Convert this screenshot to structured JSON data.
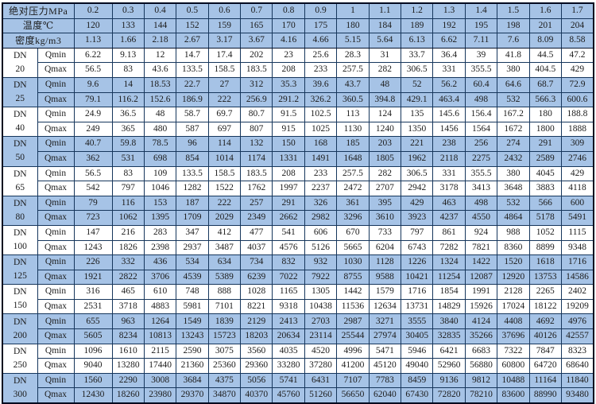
{
  "table": {
    "dn_prefix": "DN",
    "qmin_label": "Qmin",
    "qmax_label": "Qmax",
    "header_rows": [
      {
        "label": "绝对压力MPa",
        "values": [
          "0.2",
          "0.3",
          "0.4",
          "0.5",
          "0.6",
          "0.7",
          "0.8",
          "0.9",
          "1",
          "1.1",
          "1.2",
          "1.3",
          "1.4",
          "1.5",
          "1.6",
          "1.7"
        ]
      },
      {
        "label": "温度℃",
        "values": [
          "120",
          "133",
          "144",
          "152",
          "159",
          "165",
          "170",
          "175",
          "180",
          "184",
          "189",
          "192",
          "195",
          "198",
          "201",
          "204"
        ]
      },
      {
        "label": "密度kg/m3",
        "values": [
          "1.13",
          "1.66",
          "2.18",
          "2.67",
          "3.17",
          "3.67",
          "4.16",
          "4.66",
          "5.15",
          "5.64",
          "6.13",
          "6.62",
          "7.11",
          "7.6",
          "8.09",
          "8.58"
        ]
      }
    ],
    "groups": [
      {
        "dn": "20",
        "qmin": [
          "6.22",
          "9.13",
          "12",
          "14.7",
          "17.4",
          "202",
          "23",
          "25.6",
          "28.3",
          "31",
          "33.7",
          "36.4",
          "39",
          "41.8",
          "44.5",
          "47.2"
        ],
        "qmax": [
          "56.5",
          "83",
          "43.6",
          "133.5",
          "158.5",
          "183.5",
          "208",
          "233",
          "257.5",
          "282",
          "306.5",
          "331",
          "355.5",
          "380",
          "404.5",
          "429"
        ]
      },
      {
        "dn": "25",
        "qmin": [
          "9.6",
          "14",
          "18.53",
          "22.7",
          "27",
          "312",
          "35.3",
          "39.6",
          "43.7",
          "48",
          "52",
          "56.2",
          "60.4",
          "64.6",
          "68.7",
          "72.9"
        ],
        "qmax": [
          "79.1",
          "116.2",
          "152.6",
          "186.9",
          "222",
          "256.9",
          "291.2",
          "326.2",
          "360.5",
          "394.8",
          "429.1",
          "463.4",
          "498",
          "532",
          "566.3",
          "600.6"
        ]
      },
      {
        "dn": "40",
        "qmin": [
          "24.9",
          "36.5",
          "48",
          "58.7",
          "69.7",
          "80.7",
          "91.5",
          "102.5",
          "113",
          "124",
          "135",
          "145.6",
          "156.4",
          "167.2",
          "180",
          "188.8"
        ],
        "qmax": [
          "249",
          "365",
          "480",
          "587",
          "697",
          "807",
          "915",
          "1025",
          "1130",
          "1240",
          "1350",
          "1456",
          "1564",
          "1672",
          "1800",
          "1888"
        ]
      },
      {
        "dn": "50",
        "qmin": [
          "40.7",
          "59.8",
          "78.5",
          "96",
          "114",
          "132",
          "150",
          "168",
          "185",
          "203",
          "221",
          "238",
          "256",
          "274",
          "291",
          "309"
        ],
        "qmax": [
          "362",
          "531",
          "698",
          "854",
          "1014",
          "1174",
          "1331",
          "1491",
          "1648",
          "1805",
          "1962",
          "2118",
          "2275",
          "2432",
          "2589",
          "2746"
        ]
      },
      {
        "dn": "65",
        "qmin": [
          "56.5",
          "83",
          "109",
          "133.5",
          "158.5",
          "183.5",
          "208",
          "233",
          "257.5",
          "282",
          "306.5",
          "331",
          "355.5",
          "380",
          "4045",
          "429"
        ],
        "qmax": [
          "542",
          "797",
          "1046",
          "1282",
          "1522",
          "1762",
          "1997",
          "2237",
          "2472",
          "2707",
          "2942",
          "3178",
          "3413",
          "3648",
          "3883",
          "4118"
        ]
      },
      {
        "dn": "80",
        "qmin": [
          "79",
          "116",
          "153",
          "187",
          "222",
          "257",
          "291",
          "326",
          "361",
          "395",
          "429",
          "463",
          "498",
          "532",
          "566",
          "600"
        ],
        "qmax": [
          "723",
          "1062",
          "1395",
          "1709",
          "2029",
          "2349",
          "2662",
          "2982",
          "3296",
          "3610",
          "3923",
          "4237",
          "4550",
          "4864",
          "5178",
          "5491"
        ]
      },
      {
        "dn": "100",
        "qmin": [
          "147",
          "216",
          "283",
          "347",
          "412",
          "477",
          "541",
          "606",
          "670",
          "733",
          "797",
          "861",
          "924",
          "988",
          "1052",
          "1115"
        ],
        "qmax": [
          "1243",
          "1826",
          "2398",
          "2937",
          "3487",
          "4037",
          "4576",
          "5126",
          "5665",
          "6204",
          "6743",
          "7282",
          "7821",
          "8360",
          "8899",
          "9348"
        ]
      },
      {
        "dn": "125",
        "qmin": [
          "226",
          "332",
          "436",
          "534",
          "634",
          "734",
          "832",
          "932",
          "1030",
          "1128",
          "1226",
          "1324",
          "1422",
          "1520",
          "1618",
          "1716"
        ],
        "qmax": [
          "1921",
          "2822",
          "3706",
          "4539",
          "5389",
          "6239",
          "7022",
          "7922",
          "8755",
          "9588",
          "10421",
          "11254",
          "12087",
          "12920",
          "13753",
          "14586"
        ]
      },
      {
        "dn": "150",
        "qmin": [
          "316",
          "465",
          "610",
          "748",
          "888",
          "1028",
          "1165",
          "1305",
          "1442",
          "1579",
          "1716",
          "1854",
          "1991",
          "2128",
          "2265",
          "2402"
        ],
        "qmax": [
          "2531",
          "3718",
          "4883",
          "5981",
          "7101",
          "8221",
          "9318",
          "10438",
          "11536",
          "12634",
          "13731",
          "14829",
          "15926",
          "17024",
          "18122",
          "19209"
        ]
      },
      {
        "dn": "200",
        "qmin": [
          "655",
          "963",
          "1264",
          "1549",
          "1839",
          "2129",
          "2413",
          "2703",
          "2987",
          "3271",
          "3555",
          "3840",
          "4124",
          "4408",
          "4692",
          "4976"
        ],
        "qmax": [
          "5605",
          "8234",
          "10813",
          "13243",
          "15723",
          "18203",
          "20634",
          "23114",
          "25544",
          "27974",
          "30405",
          "32835",
          "35266",
          "37696",
          "40126",
          "42557"
        ]
      },
      {
        "dn": "250",
        "qmin": [
          "1096",
          "1610",
          "2115",
          "2590",
          "3075",
          "3560",
          "4035",
          "4520",
          "4996",
          "5471",
          "5946",
          "6421",
          "6683",
          "7322",
          "7847",
          "8323"
        ],
        "qmax": [
          "9040",
          "13280",
          "17440",
          "21360",
          "25360",
          "29360",
          "33280",
          "37280",
          "41200",
          "45120",
          "49040",
          "52960",
          "56880",
          "60800",
          "64720",
          "68640"
        ]
      },
      {
        "dn": "300",
        "qmin": [
          "1560",
          "2290",
          "3008",
          "3684",
          "4375",
          "5056",
          "5741",
          "6431",
          "7107",
          "7783",
          "8459",
          "9136",
          "9812",
          "10488",
          "11164",
          "11840"
        ],
        "qmax": [
          "12430",
          "18260",
          "23980",
          "29370",
          "34870",
          "40370",
          "45760",
          "51260",
          "56650",
          "62040",
          "67430",
          "72820",
          "78210",
          "83600",
          "88990",
          "93480"
        ]
      }
    ]
  },
  "colors": {
    "row_blue": "#a6c3e6",
    "row_white": "#ffffff",
    "gridline": "#16365c",
    "outer_border": "#000a1f",
    "text": "#1b1b1b"
  }
}
